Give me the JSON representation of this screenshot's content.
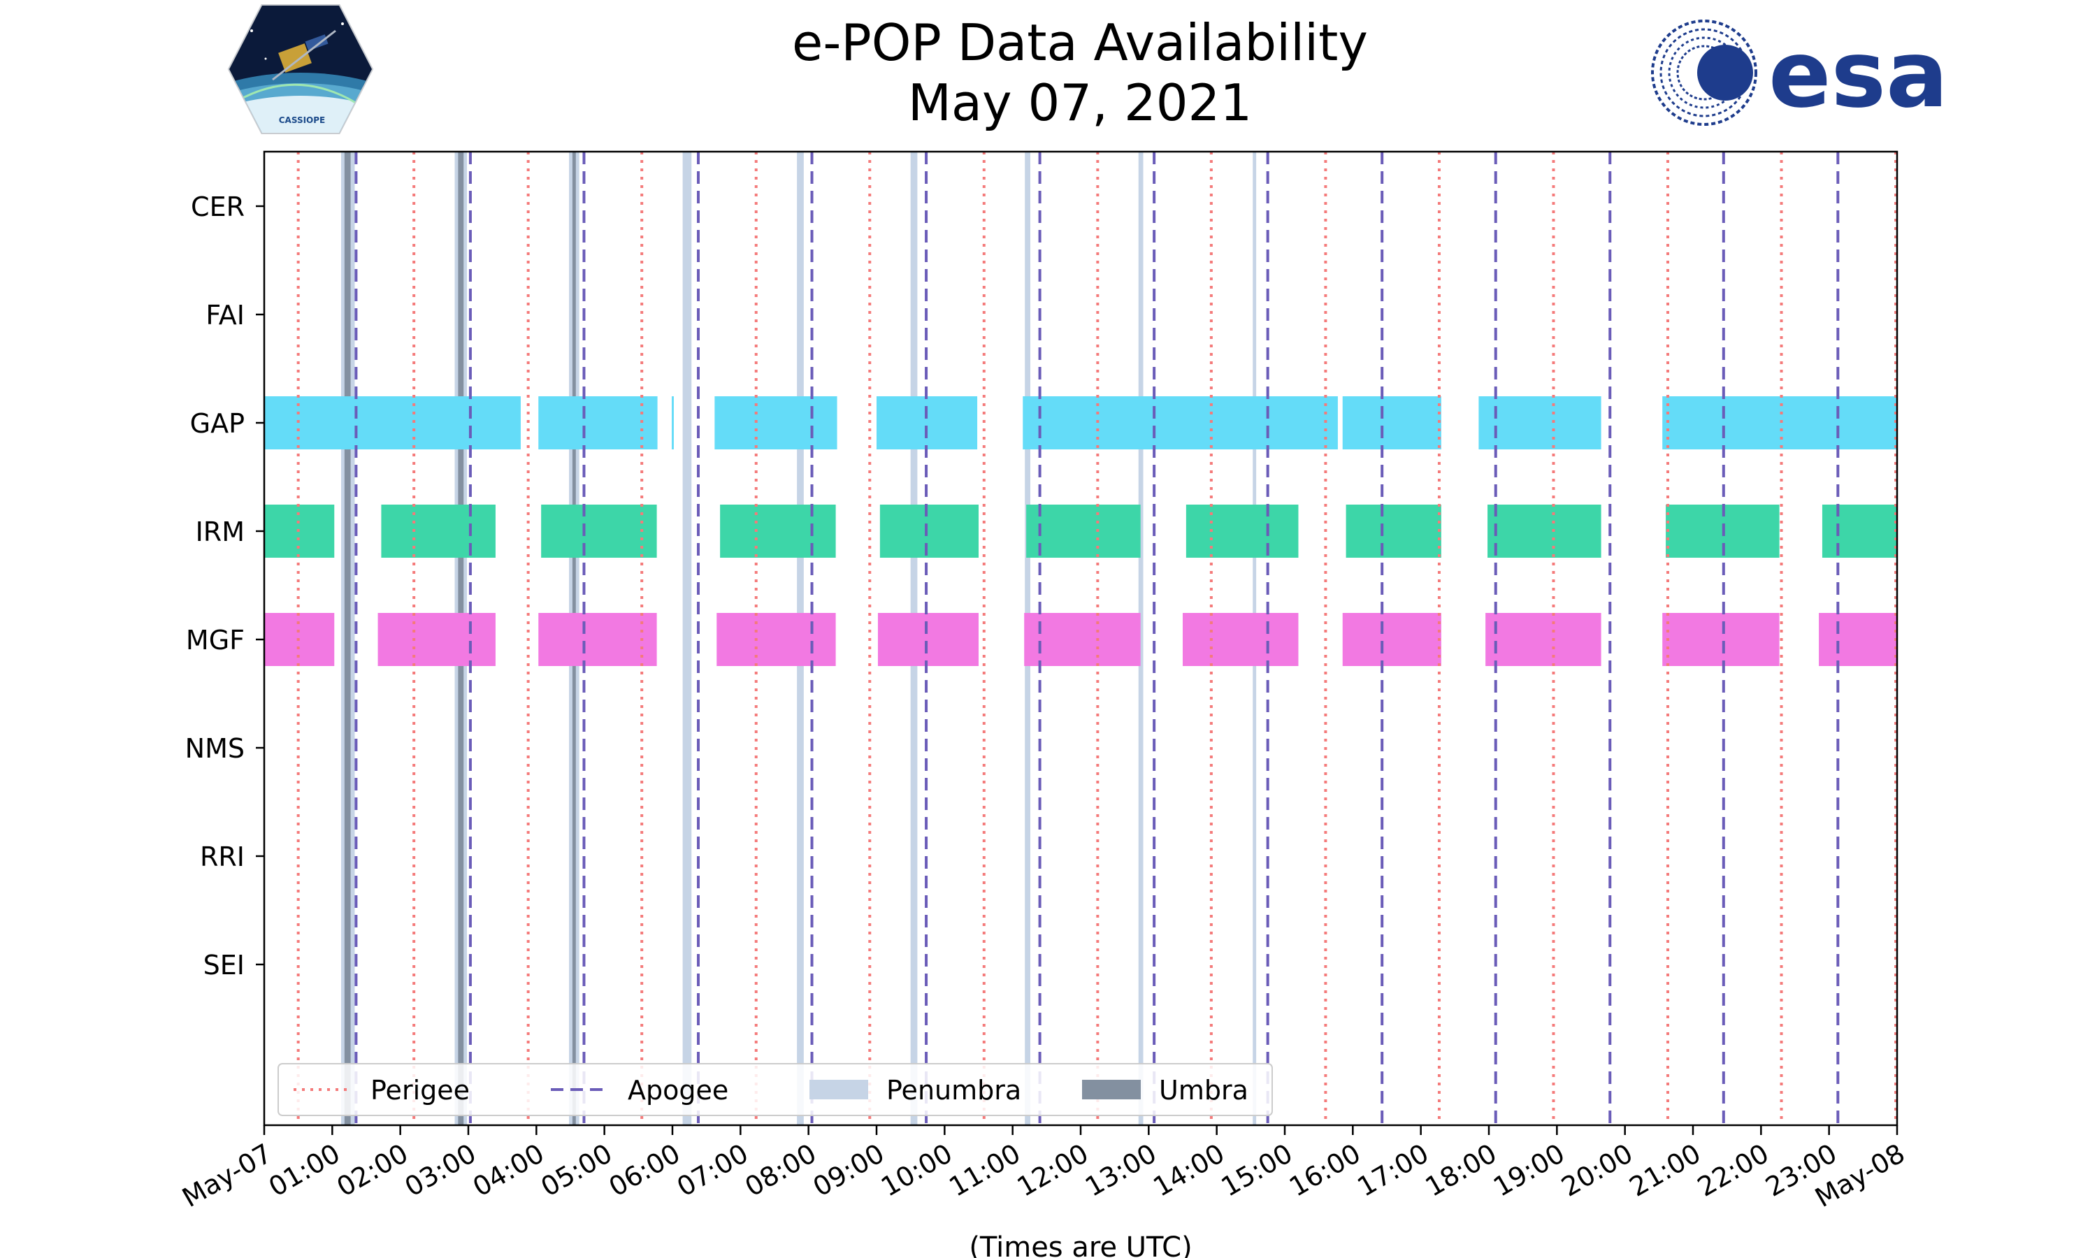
{
  "title_line1": "e-POP Data Availability",
  "title_line2": "May 07, 2021",
  "logos": {
    "left_text": "CASSIOPE",
    "right_text": "esa"
  },
  "colors": {
    "gap": "#64dcf8",
    "irm": "#3dd6a8",
    "mgf": "#f279e2",
    "perigee": "#f47a7a",
    "apogee": "#6a5cb8",
    "penumbra": "#c6d4e6",
    "umbra": "#8390a0",
    "grid": "#000000"
  },
  "chart_data": {
    "type": "timeline",
    "xlabel": "(Times are UTC)",
    "xlim_hours": [
      0,
      24
    ],
    "x_ticks": [
      {
        "h": 0,
        "label": "May-07"
      },
      {
        "h": 1,
        "label": "01:00"
      },
      {
        "h": 2,
        "label": "02:00"
      },
      {
        "h": 3,
        "label": "03:00"
      },
      {
        "h": 4,
        "label": "04:00"
      },
      {
        "h": 5,
        "label": "05:00"
      },
      {
        "h": 6,
        "label": "06:00"
      },
      {
        "h": 7,
        "label": "07:00"
      },
      {
        "h": 8,
        "label": "08:00"
      },
      {
        "h": 9,
        "label": "09:00"
      },
      {
        "h": 10,
        "label": "10:00"
      },
      {
        "h": 11,
        "label": "11:00"
      },
      {
        "h": 12,
        "label": "12:00"
      },
      {
        "h": 13,
        "label": "13:00"
      },
      {
        "h": 14,
        "label": "14:00"
      },
      {
        "h": 15,
        "label": "15:00"
      },
      {
        "h": 16,
        "label": "16:00"
      },
      {
        "h": 17,
        "label": "17:00"
      },
      {
        "h": 18,
        "label": "18:00"
      },
      {
        "h": 19,
        "label": "19:00"
      },
      {
        "h": 20,
        "label": "20:00"
      },
      {
        "h": 21,
        "label": "21:00"
      },
      {
        "h": 22,
        "label": "22:00"
      },
      {
        "h": 23,
        "label": "23:00"
      },
      {
        "h": 24,
        "label": "May-08"
      }
    ],
    "instruments": [
      "CER",
      "FAI",
      "GAP",
      "IRM",
      "MGF",
      "NMS",
      "RRI",
      "SEI"
    ],
    "availability": {
      "CER": [],
      "FAI": [],
      "GAP": [
        [
          0.0,
          3.77
        ],
        [
          4.03,
          5.78
        ],
        [
          5.99,
          6.02
        ],
        [
          6.62,
          8.42
        ],
        [
          9.0,
          10.48
        ],
        [
          11.15,
          15.78
        ],
        [
          15.85,
          17.3
        ],
        [
          17.85,
          19.65
        ],
        [
          20.55,
          24.0
        ]
      ],
      "IRM": [
        [
          0.0,
          1.03
        ],
        [
          1.72,
          3.4
        ],
        [
          4.07,
          5.77
        ],
        [
          6.7,
          8.4
        ],
        [
          9.05,
          10.5
        ],
        [
          11.2,
          12.88
        ],
        [
          13.55,
          15.2
        ],
        [
          15.9,
          17.3
        ],
        [
          17.98,
          19.65
        ],
        [
          20.6,
          22.27
        ],
        [
          22.9,
          24.0
        ]
      ],
      "MGF": [
        [
          0.0,
          1.03
        ],
        [
          1.67,
          3.4
        ],
        [
          4.03,
          5.77
        ],
        [
          6.65,
          8.4
        ],
        [
          9.02,
          10.5
        ],
        [
          11.17,
          12.88
        ],
        [
          13.5,
          15.2
        ],
        [
          15.85,
          17.3
        ],
        [
          17.95,
          19.65
        ],
        [
          20.55,
          22.27
        ],
        [
          22.85,
          24.0
        ]
      ],
      "NMS": [],
      "RRI": [],
      "SEI": []
    },
    "perigee_hours": [
      0.5,
      2.2,
      3.88,
      5.55,
      7.23,
      8.9,
      10.58,
      12.25,
      13.92,
      15.6,
      17.27,
      18.95,
      20.63,
      22.3,
      23.98
    ],
    "apogee_hours": [
      1.35,
      3.03,
      4.7,
      6.38,
      8.05,
      9.73,
      11.4,
      13.08,
      14.75,
      16.43,
      18.1,
      19.78,
      21.45,
      23.13
    ],
    "penumbra_intervals": [
      [
        1.13,
        1.33
      ],
      [
        2.8,
        2.98
      ],
      [
        4.48,
        4.63
      ],
      [
        6.15,
        6.28
      ],
      [
        7.83,
        7.93
      ],
      [
        9.5,
        9.6
      ],
      [
        11.18,
        11.26
      ],
      [
        12.85,
        12.92
      ],
      [
        14.53,
        14.58
      ]
    ],
    "umbra_intervals": [
      [
        1.18,
        1.27
      ],
      [
        2.85,
        2.93
      ],
      [
        4.53,
        4.58
      ]
    ],
    "legend": [
      "Perigee",
      "Apogee",
      "Penumbra",
      "Umbra"
    ]
  }
}
